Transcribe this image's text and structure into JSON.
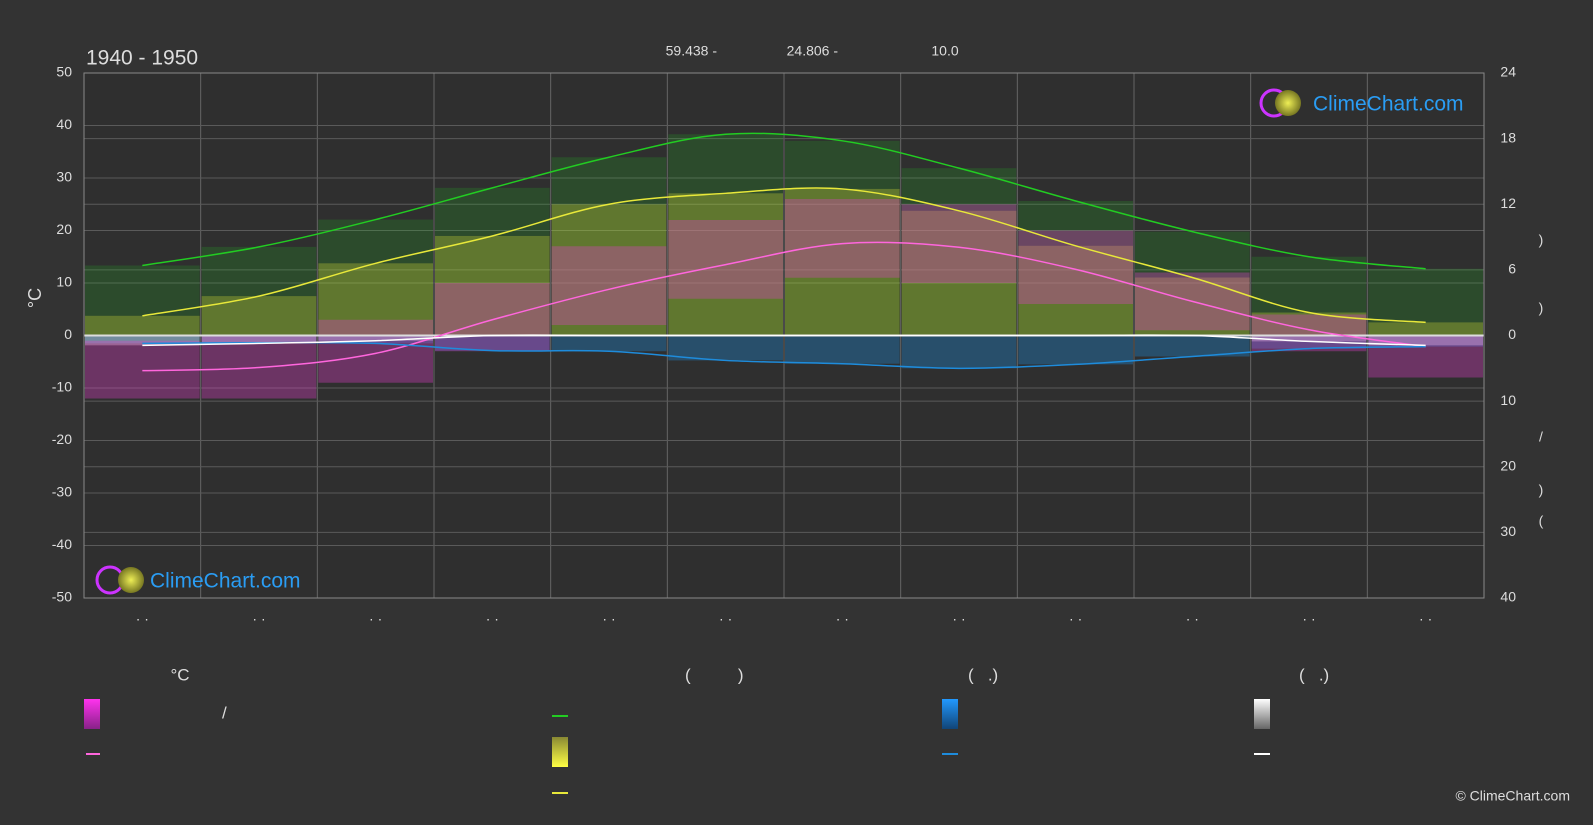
{
  "chart_data": {
    "type": "climate",
    "title": "1940 - 1950",
    "header_stats": [
      "59.438 -",
      "24.806 -",
      "10.0"
    ],
    "y_label": "°C",
    "y2_label_parts": [
      ")",
      ")",
      "/",
      ")",
      "("
    ],
    "categories": [
      "· ·",
      "· ·",
      "· ·",
      "· ·",
      "· ·",
      "· ·",
      "· ·",
      "· ·",
      "· ·",
      "· ·",
      "· ·",
      "· ·"
    ],
    "ylim": [
      -50,
      50
    ],
    "yticks": [
      -50,
      -40,
      -30,
      -20,
      -10,
      0,
      10,
      20,
      30,
      40,
      50
    ],
    "y2lim": [
      0,
      24
    ],
    "y2ticks": [
      0,
      6,
      12,
      18,
      24
    ],
    "y3lim": [
      0,
      40
    ],
    "y3ticks": [
      10,
      20,
      30,
      40
    ],
    "grid": true,
    "temp_band": {
      "color": "#e040c8",
      "max": [
        -1,
        0,
        3,
        10,
        17,
        22,
        26,
        25,
        20,
        12,
        4,
        0
      ],
      "min": [
        -12,
        -12,
        -9,
        -3,
        2,
        7,
        11,
        10,
        6,
        1,
        -3,
        -8
      ]
    },
    "series": [
      {
        "color": "#22cc22",
        "axis": "y2",
        "values": [
          6.4,
          8.1,
          10.6,
          13.5,
          16.3,
          18.4,
          17.8,
          15.3,
          12.3,
          9.5,
          7.2,
          6.1
        ]
      },
      {
        "color": "#e8e83a",
        "axis": "y2",
        "values": [
          1.8,
          3.6,
          6.6,
          9.1,
          12.0,
          13.0,
          13.4,
          11.4,
          8.2,
          5.3,
          2.1,
          1.2
        ]
      },
      {
        "color": "#ff66dd",
        "axis": "y",
        "values": [
          -6.7,
          -6.1,
          -3.4,
          3.0,
          8.8,
          13.5,
          17.5,
          16.8,
          12.6,
          6.5,
          1.1,
          -2.1
        ]
      },
      {
        "color": "#1e8cdc",
        "axis": "y3",
        "values": [
          1.2,
          1.1,
          1.2,
          2.3,
          2.4,
          3.8,
          4.3,
          5.0,
          4.4,
          3.2,
          2.0,
          1.7
        ]
      },
      {
        "color": "#ffffff",
        "axis": "y3",
        "values": [
          1.5,
          1.2,
          0.8,
          0.0,
          0.0,
          0.0,
          0.0,
          0.0,
          0.0,
          0.0,
          0.9,
          1.5
        ]
      }
    ],
    "legend_headers": [
      "°C",
      "(          )",
      "(   .)",
      "(   .)"
    ],
    "legend_text": "/",
    "watermark": "ClimeChart.com",
    "copyright": "© ClimeChart.com"
  }
}
